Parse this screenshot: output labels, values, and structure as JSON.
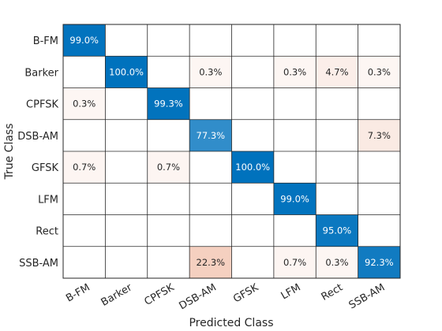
{
  "chart_data": {
    "type": "heatmap",
    "title": "",
    "xlabel": "Predicted Class",
    "ylabel": "True Class",
    "row_labels": [
      "B-FM",
      "Barker",
      "CPFSK",
      "DSB-AM",
      "GFSK",
      "LFM",
      "Rect",
      "SSB-AM"
    ],
    "col_labels": [
      "B-FM",
      "Barker",
      "CPFSK",
      "DSB-AM",
      "GFSK",
      "LFM",
      "Rect",
      "SSB-AM"
    ],
    "values_percent": [
      [
        99.0,
        null,
        null,
        null,
        null,
        null,
        null,
        null
      ],
      [
        null,
        100.0,
        null,
        0.3,
        null,
        0.3,
        4.7,
        0.3
      ],
      [
        0.3,
        null,
        99.3,
        null,
        null,
        null,
        null,
        null
      ],
      [
        null,
        null,
        null,
        77.3,
        null,
        null,
        null,
        7.3
      ],
      [
        0.7,
        null,
        0.7,
        null,
        100.0,
        null,
        null,
        null
      ],
      [
        null,
        null,
        null,
        null,
        null,
        99.0,
        null,
        null
      ],
      [
        null,
        null,
        null,
        null,
        null,
        null,
        95.0,
        null
      ],
      [
        null,
        null,
        null,
        22.3,
        null,
        0.7,
        0.3,
        92.3
      ]
    ],
    "diagonal_color": "#0072bd",
    "offdiagonal_color": "#d95319",
    "text_dark": "#262626",
    "text_light": "#ffffff"
  }
}
